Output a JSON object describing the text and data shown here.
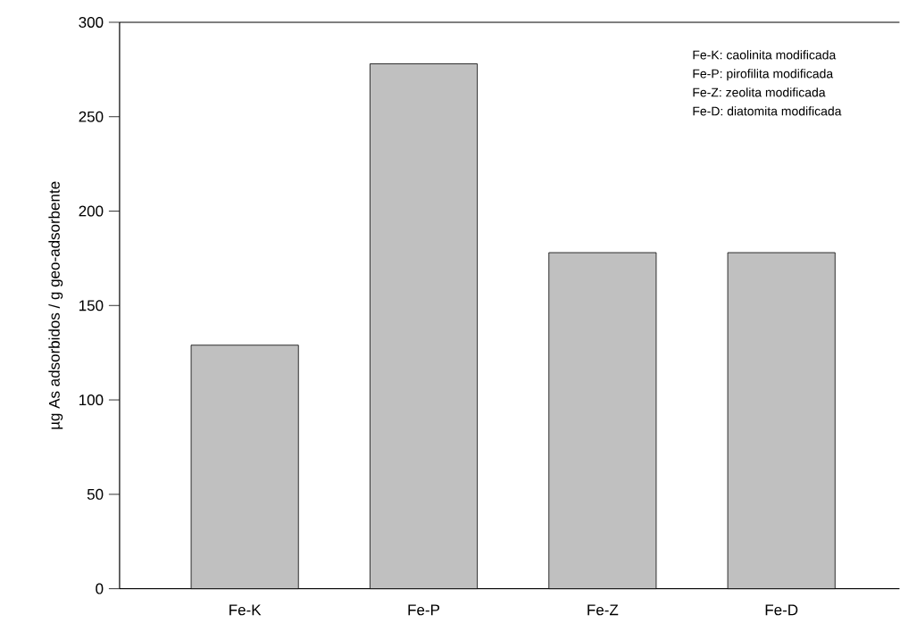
{
  "chart_data": {
    "type": "bar",
    "ylabel": "µg As adsorbidos / g geo-adsorbente",
    "categories": [
      "Fe-K",
      "Fe-P",
      "Fe-Z",
      "Fe-D"
    ],
    "values": [
      129,
      278,
      178,
      178
    ],
    "color": "#c0c0c0",
    "ylim": [
      0,
      300
    ],
    "yticks": [
      0,
      50,
      100,
      150,
      200,
      250,
      300
    ],
    "annotations": [
      "Fe-K: caolinita modificada",
      "Fe-P: pirofilita modificada",
      "Fe-Z: zeolita modificada",
      "Fe-D: diatomita modificada"
    ]
  }
}
